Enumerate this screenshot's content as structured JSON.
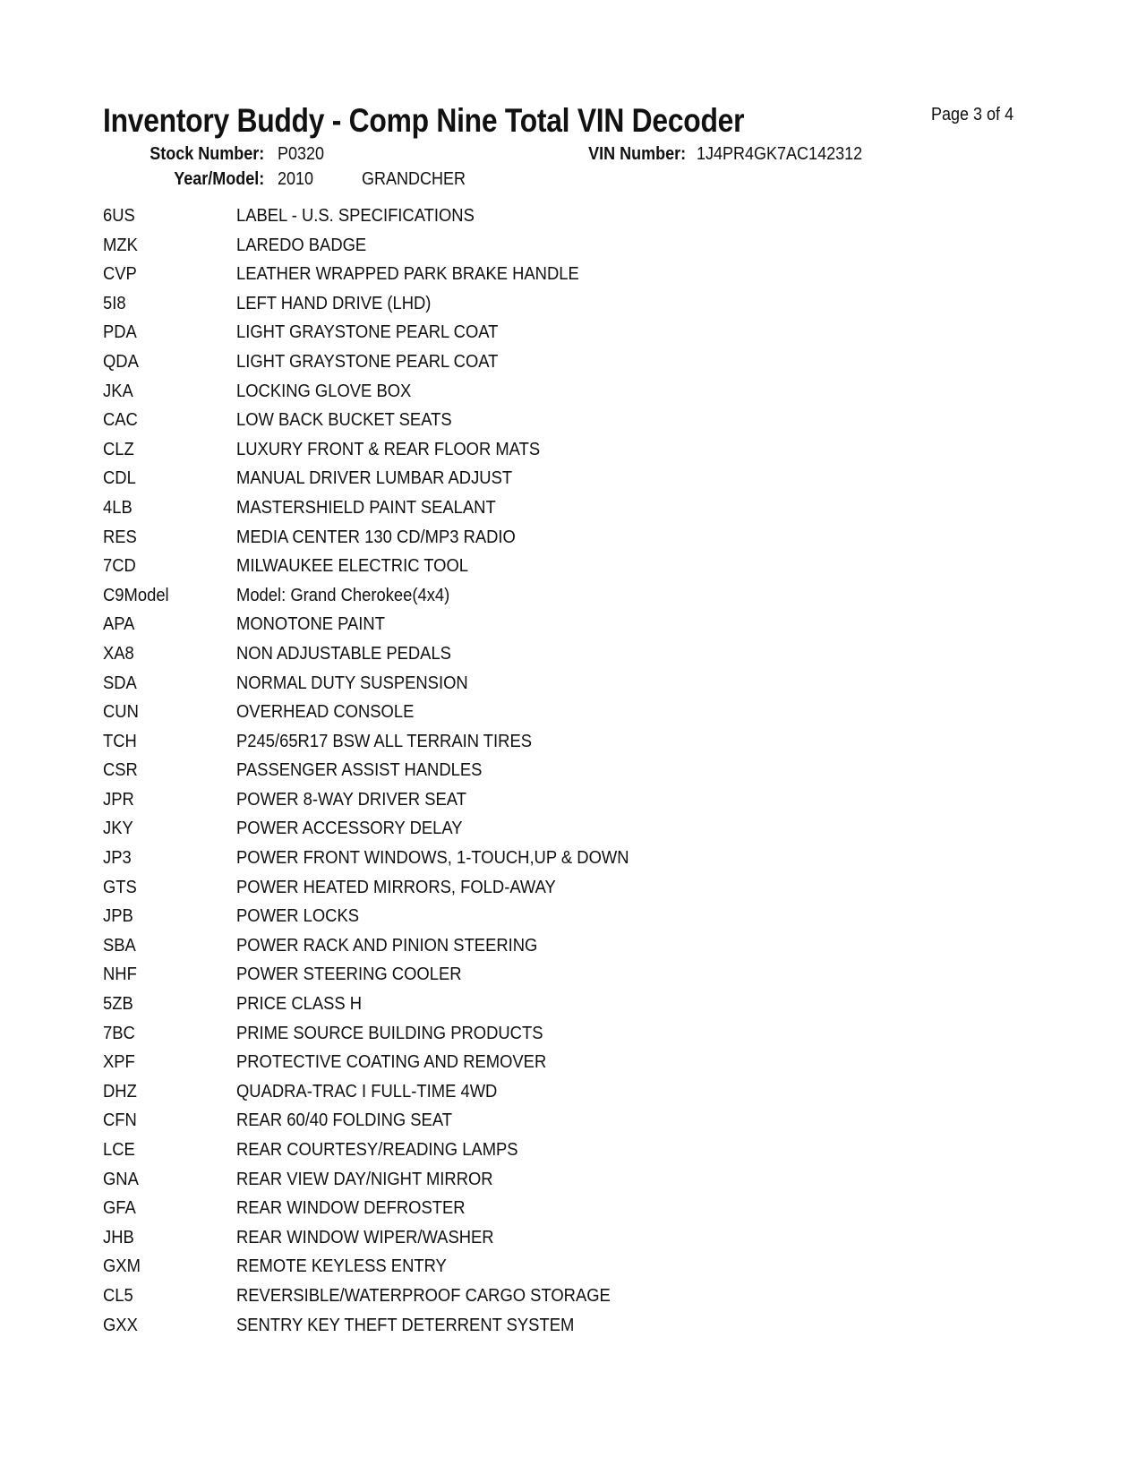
{
  "header": {
    "title": "Inventory Buddy - Comp Nine Total VIN Decoder",
    "page_indicator": "Page 3 of 4",
    "stock_number_label": "Stock Number:",
    "stock_number": "P0320",
    "vin_label": "VIN Number:",
    "vin": "1J4PR4GK7AC142312",
    "year_model_label": "Year/Model:",
    "year": "2010",
    "model": "GRANDCHER"
  },
  "options": [
    {
      "code": "6US",
      "desc": "LABEL - U.S. SPECIFICATIONS"
    },
    {
      "code": "MZK",
      "desc": "LAREDO BADGE"
    },
    {
      "code": "CVP",
      "desc": "LEATHER WRAPPED PARK BRAKE HANDLE"
    },
    {
      "code": "5I8",
      "desc": "LEFT HAND DRIVE (LHD)"
    },
    {
      "code": "PDA",
      "desc": "LIGHT GRAYSTONE PEARL COAT"
    },
    {
      "code": "QDA",
      "desc": "LIGHT GRAYSTONE PEARL COAT"
    },
    {
      "code": "JKA",
      "desc": "LOCKING GLOVE BOX"
    },
    {
      "code": "CAC",
      "desc": "LOW BACK BUCKET SEATS"
    },
    {
      "code": "CLZ",
      "desc": "LUXURY FRONT & REAR FLOOR MATS"
    },
    {
      "code": "CDL",
      "desc": "MANUAL DRIVER LUMBAR ADJUST"
    },
    {
      "code": "4LB",
      "desc": "MASTERSHIELD PAINT SEALANT"
    },
    {
      "code": "RES",
      "desc": "MEDIA CENTER 130 CD/MP3 RADIO"
    },
    {
      "code": "7CD",
      "desc": "MILWAUKEE ELECTRIC TOOL"
    },
    {
      "code": "C9Model",
      "desc": "Model: Grand Cherokee(4x4)"
    },
    {
      "code": "APA",
      "desc": "MONOTONE PAINT"
    },
    {
      "code": "XA8",
      "desc": "NON ADJUSTABLE PEDALS"
    },
    {
      "code": "SDA",
      "desc": "NORMAL DUTY SUSPENSION"
    },
    {
      "code": "CUN",
      "desc": "OVERHEAD CONSOLE"
    },
    {
      "code": "TCH",
      "desc": "P245/65R17 BSW ALL TERRAIN TIRES"
    },
    {
      "code": "CSR",
      "desc": "PASSENGER ASSIST HANDLES"
    },
    {
      "code": "JPR",
      "desc": "POWER 8-WAY DRIVER SEAT"
    },
    {
      "code": "JKY",
      "desc": "POWER ACCESSORY DELAY"
    },
    {
      "code": "JP3",
      "desc": "POWER FRONT WINDOWS, 1-TOUCH,UP & DOWN"
    },
    {
      "code": "GTS",
      "desc": "POWER HEATED MIRRORS, FOLD-AWAY"
    },
    {
      "code": "JPB",
      "desc": "POWER LOCKS"
    },
    {
      "code": "SBA",
      "desc": "POWER RACK AND PINION STEERING"
    },
    {
      "code": "NHF",
      "desc": "POWER STEERING COOLER"
    },
    {
      "code": "5ZB",
      "desc": "PRICE CLASS H"
    },
    {
      "code": "7BC",
      "desc": "PRIME SOURCE BUILDING PRODUCTS"
    },
    {
      "code": "XPF",
      "desc": "PROTECTIVE COATING AND REMOVER"
    },
    {
      "code": "DHZ",
      "desc": "QUADRA-TRAC I FULL-TIME 4WD"
    },
    {
      "code": "CFN",
      "desc": "REAR 60/40 FOLDING SEAT"
    },
    {
      "code": "LCE",
      "desc": "REAR COURTESY/READING LAMPS"
    },
    {
      "code": "GNA",
      "desc": "REAR VIEW DAY/NIGHT MIRROR"
    },
    {
      "code": "GFA",
      "desc": "REAR WINDOW DEFROSTER"
    },
    {
      "code": "JHB",
      "desc": "REAR WINDOW WIPER/WASHER"
    },
    {
      "code": "GXM",
      "desc": "REMOTE KEYLESS ENTRY"
    },
    {
      "code": "CL5",
      "desc": "REVERSIBLE/WATERPROOF CARGO STORAGE"
    },
    {
      "code": "GXX",
      "desc": "SENTRY KEY THEFT DETERRENT SYSTEM"
    }
  ]
}
